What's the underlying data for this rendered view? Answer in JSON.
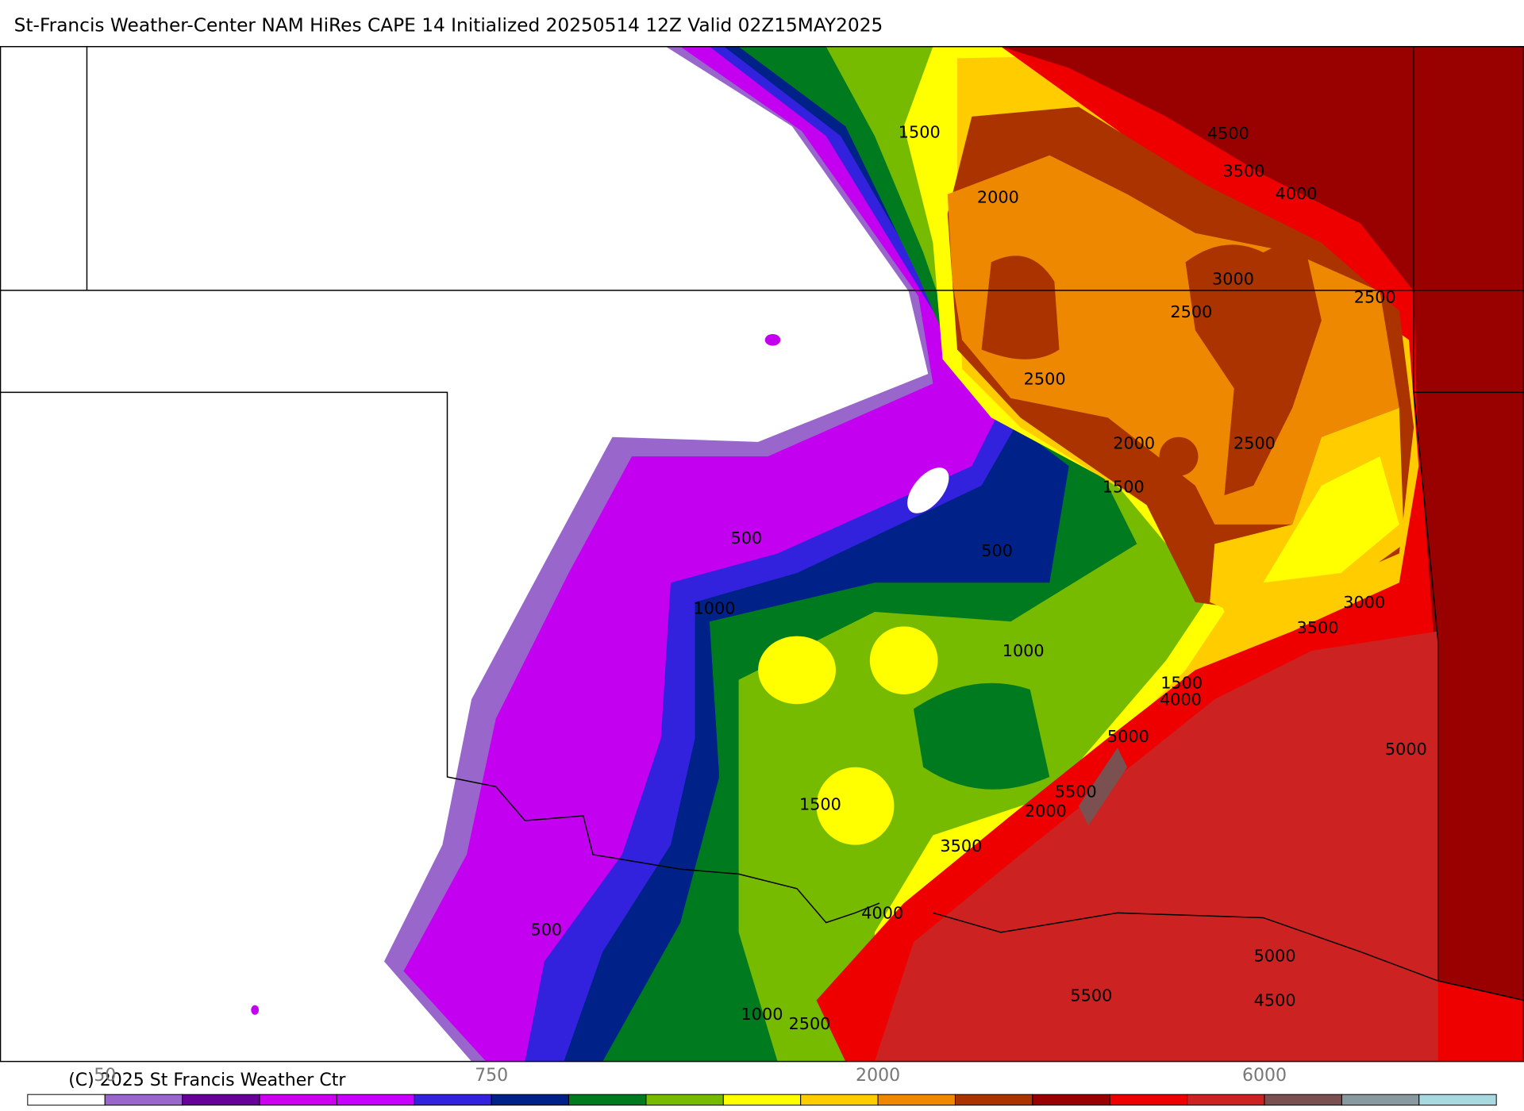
{
  "header": {
    "title": "St-Francis Weather-Center NAM HiRes CAPE  14 Initialized 20250514 12Z Valid 02Z15MAY2025"
  },
  "contour_labels": [
    1500,
    4500,
    3500,
    4000,
    2000,
    3000,
    2500,
    2500,
    2500,
    2000,
    2500,
    1500,
    500,
    500,
    3000,
    1000,
    3500,
    1000,
    1500,
    4000,
    5000,
    5000,
    5500,
    1500,
    2000,
    3500,
    4000,
    500,
    5000,
    5500,
    4500,
    1000,
    2500
  ],
  "colorbar": {
    "colors": [
      "#ffffff",
      "#9966cc",
      "#660099",
      "#cc00ee",
      "#c800ff",
      "#3322dd",
      "#002288",
      "#007a1e",
      "#77bb00",
      "#ffff00",
      "#ffcc00",
      "#ee8800",
      "#aa3300",
      "#990000",
      "#ee0000",
      "#cc2222",
      "#7a5050",
      "#8899a0",
      "#a8d8e0"
    ],
    "ticks": [
      "50",
      "750",
      "2000",
      "6000"
    ]
  },
  "footer": {
    "copyright": "(C) 2025 St Francis Weather Ctr"
  }
}
